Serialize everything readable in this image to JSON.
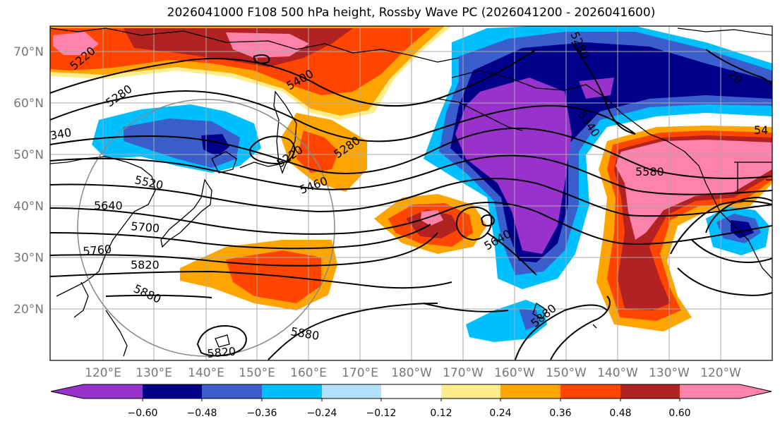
{
  "title": "2026041000 F108 500 hPa height, Rossby Wave PC (2026041200 - 2026041600)",
  "lat_labels": [
    "70°N",
    "60°N",
    "50°N",
    "40°N",
    "30°N",
    "20°N"
  ],
  "lon_labels": [
    "120°E",
    "130°E",
    "140°E",
    "150°E",
    "160°E",
    "170°E",
    "180°W",
    "170°W",
    "160°W",
    "150°W",
    "140°W",
    "130°W",
    "120°W"
  ],
  "colorbar": {
    "ticks": [
      "−0.60",
      "−0.48",
      "−0.36",
      "−0.24",
      "−0.12",
      "0.12",
      "0.24",
      "0.36",
      "0.48",
      "0.60"
    ],
    "colors": [
      "#9932cc",
      "#00008b",
      "#3a5fcd",
      "#00bfff",
      "#b0e2ff",
      "#ffffff",
      "#ffec8b",
      "#ffa500",
      "#ff4500",
      "#b22222",
      "#ff82ab"
    ]
  },
  "contour_labels": [
    "5220",
    "5280",
    "5400",
    "340",
    "5220",
    "5280",
    "5520",
    "5460",
    "5640",
    "5700",
    "5760",
    "5820",
    "5880",
    "5820",
    "5880",
    "5640",
    "5280",
    "5340",
    "5580",
    "54",
    "5880",
    "20"
  ]
}
